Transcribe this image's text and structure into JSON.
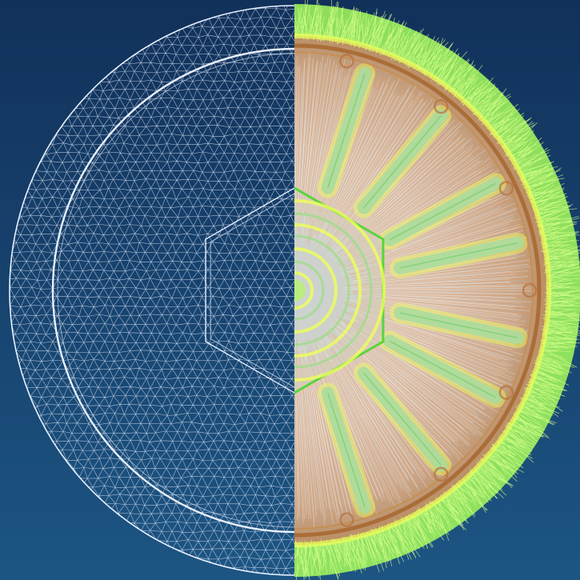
{
  "viewport": {
    "background_top": "#11315a",
    "background_bottom": "#1d5583"
  },
  "left_half": {
    "style": "wireframe-mesh",
    "line_color": "#e8f0ff"
  },
  "right_half": {
    "style": "surface-with-normal-vectors",
    "surface_color": "#d9c2b0",
    "rim_color": "#9cf15c",
    "highlight_color": "#eeff5a",
    "warm_color": "#f08a3a",
    "channel_color": "#a8dca0"
  }
}
